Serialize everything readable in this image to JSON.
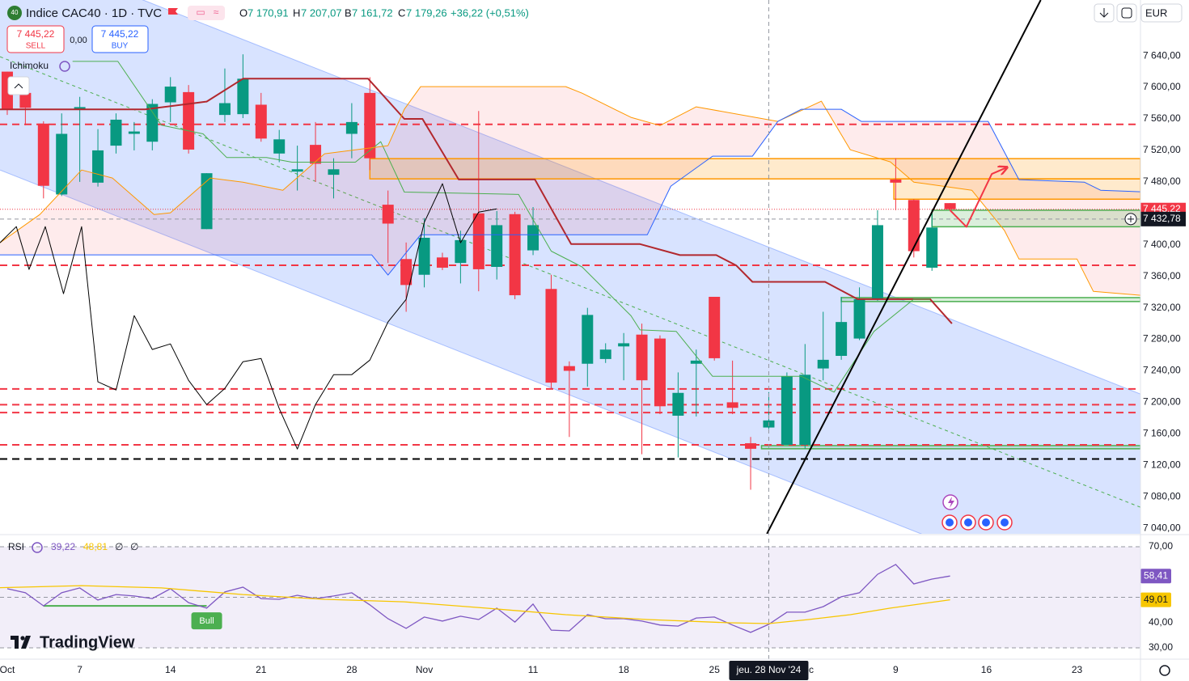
{
  "chart_data": [
    {
      "type": "candlestick",
      "header": {
        "symbol": "Indice CAC40 · 1D · TVC",
        "open_label": "O",
        "open": "7 170,91",
        "high_label": "H",
        "high": "7 207,07",
        "low_label": "B",
        "low": "7 161,72",
        "close_label": "C",
        "close": "7 179,26",
        "change": "+36,22 (+0,51%)"
      },
      "trade": {
        "sell_price": "7 445,22",
        "sell": "SELL",
        "spread": "0,00",
        "buy_price": "7 445,22",
        "buy": "BUY"
      },
      "currency": "EUR",
      "indicator": "Ichimoku",
      "xlim": [
        -0.4,
        62.5
      ],
      "xticks": [
        {
          "value": 0,
          "label": "Oct"
        },
        {
          "value": 4,
          "label": "7"
        },
        {
          "value": 9,
          "label": "14"
        },
        {
          "value": 14,
          "label": "21"
        },
        {
          "value": 19,
          "label": "28"
        },
        {
          "value": 23,
          "label": "Nov"
        },
        {
          "value": 29,
          "label": "11"
        },
        {
          "value": 34,
          "label": "18"
        },
        {
          "value": 39,
          "label": "25"
        },
        {
          "value": 44,
          "label": "Dec"
        },
        {
          "value": 49,
          "label": "9"
        },
        {
          "value": 54,
          "label": "16"
        },
        {
          "value": 59,
          "label": "23"
        }
      ],
      "ylim": [
        7033,
        7711
      ],
      "yticks": [
        {
          "value": 7040,
          "label": "7 040,00"
        },
        {
          "value": 7080,
          "label": "7 080,00"
        },
        {
          "value": 7120,
          "label": "7 120,00"
        },
        {
          "value": 7160,
          "label": "7 160,00"
        },
        {
          "value": 7200,
          "label": "7 200,00"
        },
        {
          "value": 7240,
          "label": "7 240,00"
        },
        {
          "value": 7280,
          "label": "7 280,00"
        },
        {
          "value": 7320,
          "label": "7 320,00"
        },
        {
          "value": 7360,
          "label": "7 360,00"
        },
        {
          "value": 7400,
          "label": "7 400,00"
        },
        {
          "value": 7440,
          "label": "7 440,00"
        },
        {
          "value": 7480,
          "label": "7 480,00"
        },
        {
          "value": 7520,
          "label": "7 520,00"
        },
        {
          "value": 7560,
          "label": "7 560,00"
        },
        {
          "value": 7600,
          "label": "7 600,00"
        },
        {
          "value": 7640,
          "label": "7 640,00"
        }
      ],
      "grid": false,
      "up_color": "#089981",
      "down_color": "#f23645",
      "x": [
        0,
        1,
        2,
        3,
        4,
        5,
        6,
        7,
        8,
        9,
        10,
        11,
        12,
        13,
        14,
        15,
        16,
        17,
        18,
        19,
        20,
        21,
        22,
        23,
        24,
        25,
        26,
        27,
        28,
        29,
        30,
        31,
        32,
        33,
        34,
        35,
        36,
        37,
        38,
        39,
        40,
        41,
        42,
        43,
        44,
        45,
        46,
        47,
        48,
        49,
        50,
        51,
        52
      ],
      "open": [
        7620,
        7593,
        7554,
        7464,
        7572,
        7479,
        7526,
        7541,
        7531,
        7581,
        7594,
        7420,
        7565,
        7566,
        7578,
        7516,
        7493,
        7527,
        7489,
        7541,
        7593,
        7451,
        7382,
        7362,
        7384,
        7377,
        7440,
        7372,
        7439,
        7393,
        7344,
        7246,
        7249,
        7255,
        7271,
        7286,
        7281,
        7183,
        7249,
        7334,
        7200,
        7148,
        7168,
        7146,
        7146,
        7243,
        7259,
        7281,
        7331,
        7483,
        7457,
        7371,
        7453
      ],
      "high": [
        7620,
        7603,
        7557,
        7567,
        7588,
        7547,
        7567,
        7556,
        7585,
        7613,
        7603,
        7491,
        7624,
        7642,
        7593,
        7546,
        7526,
        7556,
        7510,
        7580,
        7613,
        7469,
        7403,
        7434,
        7390,
        7418,
        7570,
        7443,
        7442,
        7448,
        7362,
        7252,
        7320,
        7275,
        7288,
        7300,
        7285,
        7238,
        7267,
        7334,
        7253,
        7156,
        7213,
        7238,
        7274,
        7315,
        7334,
        7346,
        7444,
        7510,
        7458,
        7444,
        7453
      ],
      "low": [
        7565,
        7552,
        7459,
        7462,
        7480,
        7474,
        7516,
        7520,
        7520,
        7556,
        7516,
        7420,
        7556,
        7561,
        7531,
        7505,
        7469,
        7480,
        7459,
        7510,
        7495,
        7377,
        7315,
        7346,
        7368,
        7351,
        7341,
        7356,
        7331,
        7387,
        7218,
        7156,
        7220,
        7250,
        7228,
        7134,
        7185,
        7130,
        7182,
        7253,
        7185,
        7089,
        7166,
        7146,
        7141,
        7228,
        7254,
        7279,
        7329,
        7444,
        7384,
        7367,
        7444
      ],
      "close": [
        7572,
        7574,
        7475,
        7541,
        7575,
        7520,
        7559,
        7544,
        7579,
        7601,
        7521,
        7491,
        7580,
        7611,
        7535,
        7534,
        7496,
        7503,
        7496,
        7556,
        7510,
        7427,
        7349,
        7409,
        7371,
        7406,
        7369,
        7425,
        7336,
        7425,
        7225,
        7240,
        7311,
        7267,
        7275,
        7228,
        7195,
        7212,
        7253,
        7256,
        7193,
        7141,
        7177,
        7233,
        7235,
        7254,
        7302,
        7331,
        7425,
        7479,
        7392,
        7422,
        7445.22
      ],
      "channel": {
        "x": [
          -0.4,
          62.5
        ],
        "upper": [
          7782.8,
          7210.5
        ],
        "mid": [
          7639,
          7066.7
        ],
        "lower": [
          7495.1,
          6922.9
        ],
        "color": "#2962ff",
        "mid_color": "#4caf50"
      },
      "cloud_color": "#f23645",
      "lines": [
        {
          "color": "#b2282e",
          "width": 2,
          "x": [
            -0.4,
            7.6,
            11,
            13,
            19.9,
            21.9,
            22.9,
            24.9,
            29.1,
            31.1,
            34.9,
            37.1,
            39.1,
            40.2,
            41.1,
            45.1,
            46.9,
            50.9,
            52.1
          ],
          "values": [
            7572,
            7572,
            7582,
            7611,
            7611,
            7560,
            7560,
            7483,
            7483,
            7401,
            7401,
            7387,
            7387,
            7374,
            7353,
            7353,
            7331,
            7331,
            7300
          ]
        },
        {
          "color": "#4caf50",
          "width": 1,
          "x": [
            3.6,
            6.1,
            8.5,
            10.8,
            12.1,
            14.3,
            15.7,
            19.2,
            20.6,
            21.9,
            28.2,
            30,
            31.7,
            34.4,
            34.9,
            36.9,
            38.9,
            43.8,
            45.6,
            47.8,
            50,
            50.9
          ],
          "values": [
            7633,
            7633,
            7552,
            7541,
            7511,
            7511,
            7505,
            7505,
            7531,
            7467,
            7464,
            7392,
            7372,
            7310,
            7292,
            7290,
            7233,
            7233,
            7213,
            7290,
            7331,
            7331
          ]
        },
        {
          "color": "#ff9800",
          "width": 1,
          "x": [
            -0.4,
            1.8,
            4.1,
            5.8,
            8.1,
            9,
            11.2,
            13,
            15.2,
            17.5,
            19.2,
            21,
            21.9,
            22.8,
            30.8,
            31.7,
            34.4,
            36,
            38,
            42.5,
            44.9,
            46.5,
            48.7,
            50,
            53.2,
            55,
            55.8,
            59,
            59.9,
            62.5
          ],
          "values": [
            7402.7,
            7438.6,
            7495.1,
            7484.9,
            7438.6,
            7440.7,
            7484.9,
            7479.7,
            7469.4,
            7515.7,
            7520.8,
            7526,
            7572.2,
            7601,
            7601,
            7592.7,
            7561.9,
            7551.6,
            7575.3,
            7556.8,
            7582.5,
            7520.8,
            7505.4,
            7479.7,
            7469.4,
            7418.1,
            7382.1,
            7382.1,
            7341,
            7335.9
          ]
        },
        {
          "color": "#2962ff",
          "width": 1,
          "x": [
            -0.4,
            20.1,
            21,
            22.8,
            35.3,
            36.6,
            38.9,
            41.1,
            42.5,
            43.8,
            46,
            47.1,
            54.1,
            55.8,
            59.4,
            60.3,
            62.5
          ],
          "values": [
            7387.3,
            7387.3,
            7361.6,
            7412.9,
            7412.9,
            7474.6,
            7512.6,
            7512.6,
            7556.8,
            7572.2,
            7572.2,
            7556.8,
            7556.8,
            7482.8,
            7479.7,
            7469.4,
            7467.4
          ]
        },
        {
          "color": "#000000",
          "width": 1,
          "x": [
            -0.4,
            0.5,
            1.2,
            2.1,
            3.1,
            4.1,
            5,
            6,
            7,
            8,
            9,
            10,
            11,
            12,
            13,
            14,
            15,
            16,
            17,
            18,
            19,
            20,
            21,
            22,
            23,
            24,
            25,
            26,
            27
          ],
          "values": [
            7402.7,
            7423.2,
            7368.8,
            7423.2,
            7338,
            7423.2,
            7226,
            7215.7,
            7310.2,
            7267.1,
            7274.2,
            7228,
            7197.2,
            7217.7,
            7251.6,
            7255.7,
            7192.1,
            7140.7,
            7197.2,
            7235.2,
            7235.2,
            7253.7,
            7302,
            7330.7,
            7428.4,
            7477.7,
            7402.7,
            7441.7,
            7445.8
          ]
        },
        {
          "color": "#000000",
          "width": 2,
          "x": [
            41.9,
            57
          ],
          "values": [
            7033,
            7711
          ]
        },
        {
          "color": "#f23645",
          "width": 2,
          "arrow": true,
          "x": [
            52,
            52.9,
            54.3,
            55.1
          ],
          "values": [
            7444,
            7423,
            7490,
            7498
          ]
        }
      ],
      "hlines": [
        {
          "value": 7553,
          "color": "#f23645"
        },
        {
          "value": 7374,
          "color": "#f23645"
        },
        {
          "value": 7217,
          "color": "#f23645"
        },
        {
          "value": 7197,
          "color": "#f23645"
        },
        {
          "value": 7187,
          "color": "#f23645"
        },
        {
          "value": 7146,
          "color": "#f23645"
        },
        {
          "value": 7128,
          "color": "#000000"
        }
      ],
      "zones": [
        {
          "from": 20,
          "to": 62.5,
          "low": 7483.8,
          "high": 7509.5,
          "color": "#ff9800"
        },
        {
          "from": 48.9,
          "to": 62.5,
          "low": 7458,
          "high": 7483.8,
          "color": "#ff9800"
        },
        {
          "from": 51,
          "to": 62.5,
          "low": 7423,
          "high": 7444,
          "color": "#4caf50"
        },
        {
          "from": 46,
          "to": 62.5,
          "low": 7328,
          "high": 7333,
          "color": "#4caf50"
        },
        {
          "from": 41.6,
          "to": 62.5,
          "low": 7141,
          "high": 7145,
          "color": "#4caf50"
        }
      ],
      "last_price": {
        "value": 7445.22,
        "label": "7 445,22",
        "color": "#f23645"
      },
      "crosshair": {
        "x": 42,
        "date_label": "jeu. 28 Nov '24",
        "price": 7432.78,
        "price_label": "7 432,78"
      }
    },
    {
      "type": "line",
      "legend": {
        "title": "RSI",
        "rsi": "39,22",
        "ma": "48,81",
        "extra1": "∅",
        "extra2": "∅"
      },
      "xlim": [
        -0.4,
        62.5
      ],
      "ylim": [
        25.5,
        74.5
      ],
      "yticks": [
        {
          "value": 70,
          "label": "70,00"
        },
        {
          "value": 40,
          "label": "40,00"
        },
        {
          "value": 30,
          "label": "30,00"
        }
      ],
      "levels": [
        70,
        50,
        30
      ],
      "band_color": "#7e57c2",
      "series": [
        {
          "color": "#7e57c2",
          "x": [
            0,
            1,
            2,
            3,
            4,
            5,
            6,
            7,
            8,
            9,
            10,
            11,
            12,
            13,
            14,
            15,
            16,
            17,
            18,
            19,
            20,
            21,
            22,
            23,
            24,
            25,
            26,
            27,
            28,
            29,
            30,
            31,
            32,
            33,
            34,
            35,
            36,
            37,
            38,
            39,
            40,
            41,
            42,
            43,
            44,
            45,
            46,
            47,
            48,
            49,
            50,
            51,
            52
          ],
          "values": [
            53.4,
            51.8,
            46.6,
            51.8,
            53.7,
            48.9,
            51.1,
            50.5,
            49.5,
            53.4,
            47.9,
            45.7,
            52.1,
            54,
            49.5,
            49.2,
            50.8,
            49.5,
            50.5,
            51.8,
            47,
            41.5,
            37.7,
            42.2,
            40.6,
            42.5,
            41.2,
            45.7,
            40.2,
            47.3,
            37,
            36.7,
            43.1,
            41.5,
            41.5,
            40.6,
            39,
            38.6,
            41.8,
            42.2,
            39,
            36.1,
            39.3,
            44.1,
            44.1,
            46.3,
            50.2,
            51.8,
            59.1,
            63,
            55.3,
            57.2,
            58.41
          ],
          "last_label": "58,41",
          "label_text_color": "#ffffff"
        },
        {
          "color": "#f7c600",
          "x": [
            -0.4,
            4.1,
            8.5,
            13,
            17.5,
            21.9,
            26.4,
            30.8,
            35.3,
            39.8,
            42,
            44.2,
            46.5,
            48.7,
            52
          ],
          "values": [
            53.8,
            54.6,
            53.7,
            51.1,
            49.2,
            48.2,
            45.7,
            43.1,
            41.2,
            39.9,
            39.6,
            41.2,
            43.1,
            45.7,
            49.01
          ],
          "last_label": "49,01",
          "label_text_color": "#131722"
        }
      ],
      "divergence": {
        "x": [
          2,
          11
        ],
        "values": [
          46.6,
          46.6
        ],
        "color": "#4caf50",
        "label": "Bull"
      }
    }
  ],
  "branding": "TradingView"
}
